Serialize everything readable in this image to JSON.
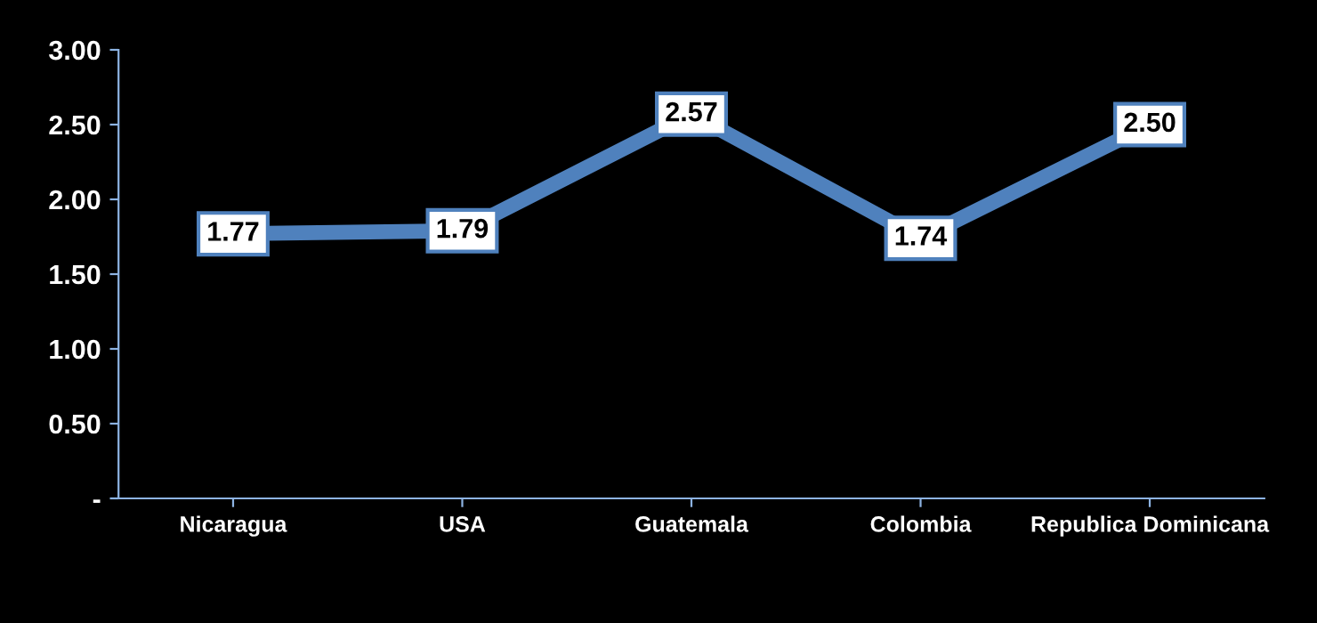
{
  "chart_data": {
    "type": "line",
    "categories": [
      "Nicaragua",
      "USA",
      "Guatemala",
      "Colombia",
      "Republica Dominicana"
    ],
    "series": [
      {
        "color": "#4f81bd",
        "values": [
          1.77,
          1.79,
          2.57,
          1.74,
          2.5
        ],
        "value_labels": [
          "1.77",
          "1.79",
          "2.57",
          "1.74",
          "2.50"
        ]
      }
    ],
    "ylim": [
      0,
      3.0
    ],
    "yticks": [
      {
        "value": 0,
        "label": "-"
      },
      {
        "value": 0.5,
        "label": "0.50"
      },
      {
        "value": 1.0,
        "label": "1.00"
      },
      {
        "value": 1.5,
        "label": "1.50"
      },
      {
        "value": 2.0,
        "label": "2.00"
      },
      {
        "value": 2.5,
        "label": "2.50"
      },
      {
        "value": 3.0,
        "label": "3.00"
      }
    ],
    "grid": false,
    "legend": false,
    "marker": "square",
    "line_style": "solid"
  }
}
